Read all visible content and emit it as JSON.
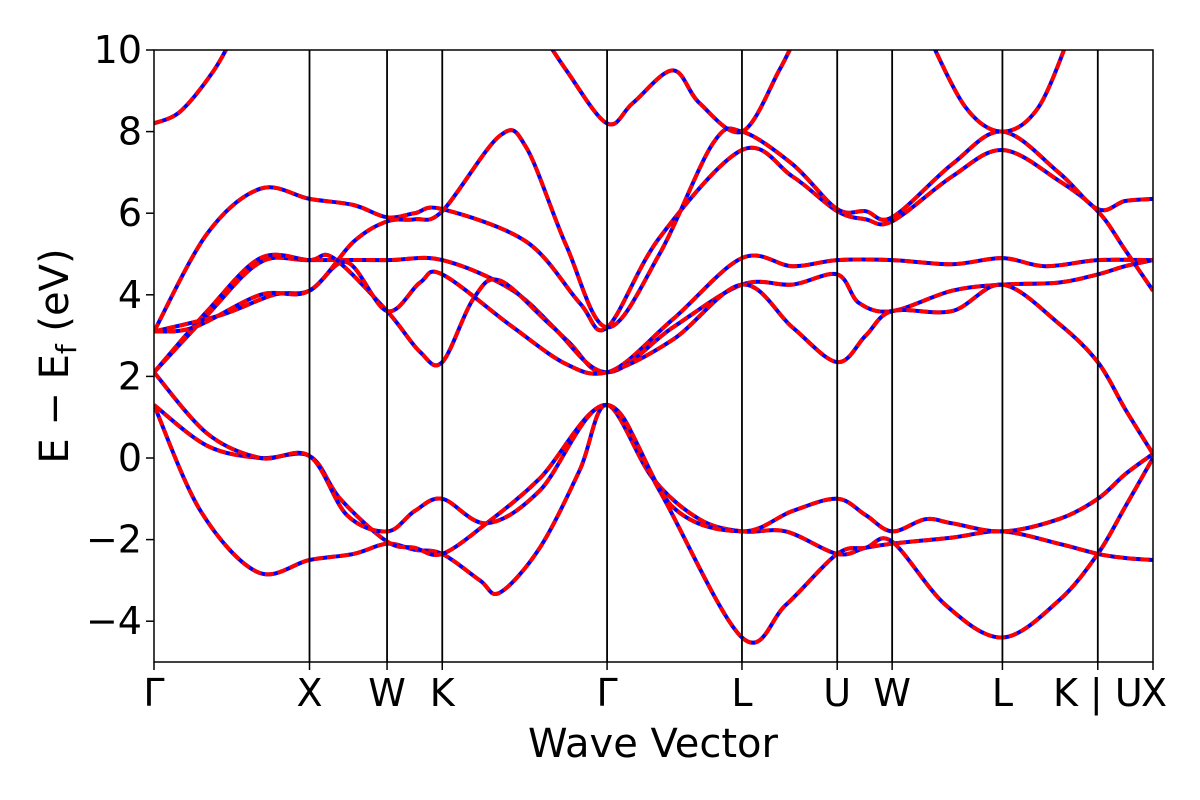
{
  "chart_data": {
    "type": "line",
    "title": "",
    "xlabel": "Wave Vector",
    "ylabel": "E − E",
    "ylabel_subscript": "f",
    "ylabel_unit": " (eV)",
    "ylim": [
      -5,
      10
    ],
    "yticks": [
      -4,
      -2,
      0,
      2,
      4,
      6,
      8,
      10
    ],
    "ytick_labels": [
      "−4",
      "−2",
      "0",
      "2",
      "4",
      "6",
      "8",
      "10"
    ],
    "xlim": [
      0,
      7.51
    ],
    "kpoints": [
      {
        "label": "Γ",
        "x": 0
      },
      {
        "label": "X",
        "x": 1.169
      },
      {
        "label": "W",
        "x": 1.752
      },
      {
        "label": "K",
        "x": 2.167
      },
      {
        "label": "Γ",
        "x": 3.406
      },
      {
        "label": "L",
        "x": 4.42
      },
      {
        "label": "U",
        "x": 5.136
      },
      {
        "label": "W",
        "x": 5.549
      },
      {
        "label": "L",
        "x": 6.378
      },
      {
        "label": "K | U",
        "x": 7.095
      },
      {
        "label": "X",
        "x": 7.51
      }
    ],
    "grid": false,
    "series_colors": {
      "overlay": "#ff0000",
      "base": "#0000ff"
    },
    "bands": [
      {
        "name": "",
        "points": [
          [
            0,
            1.3
          ],
          [
            0.35,
            -1.3
          ],
          [
            0.78,
            -2.8
          ],
          [
            1.169,
            -2.5
          ],
          [
            1.5,
            -2.35
          ],
          [
            1.752,
            -2.1
          ],
          [
            1.96,
            -2.25
          ],
          [
            2.167,
            -2.35
          ],
          [
            2.45,
            -3.0
          ],
          [
            2.6,
            -3.3
          ],
          [
            2.9,
            -2.2
          ],
          [
            3.2,
            -0.3
          ],
          [
            3.406,
            1.3
          ],
          [
            3.75,
            -0.5
          ],
          [
            4.1,
            -1.5
          ],
          [
            4.42,
            -1.8
          ],
          [
            4.75,
            -1.8
          ],
          [
            5.136,
            -2.35
          ],
          [
            5.35,
            -2.2
          ],
          [
            5.549,
            -2.1
          ],
          [
            6.0,
            -1.95
          ],
          [
            6.378,
            -1.8
          ],
          [
            6.8,
            -2.1
          ],
          [
            7.095,
            -2.35
          ],
          [
            7.3,
            -2.45
          ],
          [
            7.51,
            -2.5
          ]
        ]
      },
      {
        "name": "",
        "points": [
          [
            0,
            1.3
          ],
          [
            0.4,
            0.3
          ],
          [
            0.8,
            0.0
          ],
          [
            1.169,
            0.05
          ],
          [
            1.4,
            -1.0
          ],
          [
            1.752,
            -2.05
          ],
          [
            1.96,
            -2.2
          ],
          [
            2.167,
            -2.35
          ],
          [
            2.5,
            -1.6
          ],
          [
            2.9,
            -0.5
          ],
          [
            3.406,
            1.3
          ],
          [
            3.8,
            -0.8
          ],
          [
            4.42,
            -4.4
          ],
          [
            4.75,
            -3.6
          ],
          [
            5.136,
            -2.35
          ],
          [
            5.35,
            -2.2
          ],
          [
            5.549,
            -2.05
          ],
          [
            5.95,
            -3.6
          ],
          [
            6.378,
            -4.4
          ],
          [
            6.8,
            -3.5
          ],
          [
            7.095,
            -2.35
          ],
          [
            7.3,
            -1.2
          ],
          [
            7.51,
            0.0
          ]
        ]
      },
      {
        "name": "",
        "points": [
          [
            0,
            2.1
          ],
          [
            0.4,
            0.6
          ],
          [
            0.8,
            0.0
          ],
          [
            1.169,
            0.05
          ],
          [
            1.45,
            -1.4
          ],
          [
            1.752,
            -1.8
          ],
          [
            1.96,
            -1.3
          ],
          [
            2.167,
            -1.0
          ],
          [
            2.5,
            -1.6
          ],
          [
            2.9,
            -0.8
          ],
          [
            3.406,
            1.3
          ],
          [
            3.9,
            -1.2
          ],
          [
            4.42,
            -1.8
          ],
          [
            4.8,
            -1.3
          ],
          [
            5.136,
            -1.0
          ],
          [
            5.35,
            -1.4
          ],
          [
            5.549,
            -1.8
          ],
          [
            5.8,
            -1.5
          ],
          [
            6.0,
            -1.6
          ],
          [
            6.378,
            -1.8
          ],
          [
            6.8,
            -1.5
          ],
          [
            7.095,
            -1.0
          ],
          [
            7.3,
            -0.4
          ],
          [
            7.51,
            0.1
          ]
        ]
      },
      {
        "name": "",
        "points": [
          [
            0,
            2.1
          ],
          [
            0.4,
            3.5
          ],
          [
            0.8,
            4.8
          ],
          [
            1.169,
            4.85
          ],
          [
            1.752,
            4.85
          ],
          [
            2.167,
            4.85
          ],
          [
            2.7,
            4.1
          ],
          [
            3.1,
            2.9
          ],
          [
            3.406,
            2.1
          ],
          [
            3.9,
            3.4
          ],
          [
            4.42,
            4.9
          ],
          [
            4.8,
            4.7
          ],
          [
            5.136,
            4.85
          ],
          [
            5.549,
            4.85
          ],
          [
            6.0,
            4.75
          ],
          [
            6.378,
            4.9
          ],
          [
            6.7,
            4.7
          ],
          [
            7.095,
            4.85
          ],
          [
            7.51,
            4.85
          ]
        ]
      },
      {
        "name": "",
        "points": [
          [
            0,
            2.1
          ],
          [
            0.4,
            3.6
          ],
          [
            0.8,
            4.9
          ],
          [
            1.169,
            4.85
          ],
          [
            1.35,
            4.9
          ],
          [
            1.752,
            3.6
          ],
          [
            2.0,
            2.6
          ],
          [
            2.167,
            2.35
          ],
          [
            2.4,
            3.9
          ],
          [
            2.6,
            4.35
          ],
          [
            3.0,
            3.2
          ],
          [
            3.406,
            2.1
          ],
          [
            3.9,
            3.2
          ],
          [
            4.42,
            4.25
          ],
          [
            4.8,
            4.25
          ],
          [
            5.136,
            4.5
          ],
          [
            5.3,
            3.8
          ],
          [
            5.549,
            3.6
          ],
          [
            6.0,
            4.1
          ],
          [
            6.378,
            4.25
          ],
          [
            6.8,
            4.3
          ],
          [
            7.095,
            4.5
          ],
          [
            7.3,
            4.7
          ],
          [
            7.51,
            4.85
          ]
        ]
      },
      {
        "name": "",
        "points": [
          [
            0,
            3.1
          ],
          [
            0.5,
            3.5
          ],
          [
            0.9,
            4.0
          ],
          [
            1.169,
            4.1
          ],
          [
            1.45,
            4.8
          ],
          [
            1.752,
            3.6
          ],
          [
            2.0,
            4.3
          ],
          [
            2.167,
            4.5
          ],
          [
            2.7,
            3.2
          ],
          [
            3.1,
            2.3
          ],
          [
            3.406,
            2.1
          ],
          [
            3.9,
            2.9
          ],
          [
            4.42,
            4.25
          ],
          [
            4.8,
            3.2
          ],
          [
            5.136,
            2.35
          ],
          [
            5.35,
            3.0
          ],
          [
            5.549,
            3.6
          ],
          [
            6.0,
            3.6
          ],
          [
            6.378,
            4.25
          ],
          [
            6.8,
            3.3
          ],
          [
            7.095,
            2.35
          ],
          [
            7.3,
            1.2
          ],
          [
            7.51,
            0.1
          ]
        ]
      },
      {
        "name": "",
        "points": [
          [
            0,
            3.1
          ],
          [
            0.4,
            5.5
          ],
          [
            0.8,
            6.6
          ],
          [
            1.169,
            6.35
          ],
          [
            1.5,
            6.2
          ],
          [
            1.752,
            5.9
          ],
          [
            1.96,
            6.0
          ],
          [
            2.167,
            6.1
          ],
          [
            2.8,
            5.3
          ],
          [
            3.2,
            3.8
          ],
          [
            3.406,
            3.2
          ],
          [
            3.8,
            5.4
          ],
          [
            4.42,
            7.55
          ],
          [
            4.8,
            6.9
          ],
          [
            5.136,
            6.05
          ],
          [
            5.35,
            5.85
          ],
          [
            5.549,
            5.8
          ],
          [
            6.0,
            6.9
          ],
          [
            6.378,
            7.55
          ],
          [
            6.8,
            6.8
          ],
          [
            7.095,
            6.05
          ],
          [
            7.3,
            5.1
          ],
          [
            7.51,
            4.1
          ]
        ]
      },
      {
        "name": "",
        "points": [
          [
            0,
            3.1
          ],
          [
            0.3,
            3.2
          ],
          [
            0.8,
            4.0
          ],
          [
            1.169,
            4.1
          ],
          [
            1.5,
            5.3
          ],
          [
            1.752,
            5.8
          ],
          [
            1.96,
            5.85
          ],
          [
            2.167,
            6.05
          ],
          [
            2.6,
            7.9
          ],
          [
            2.8,
            7.6
          ],
          [
            3.1,
            5.2
          ],
          [
            3.406,
            3.2
          ],
          [
            3.8,
            5.0
          ],
          [
            4.2,
            7.7
          ],
          [
            4.42,
            8.0
          ],
          [
            4.8,
            7.2
          ],
          [
            5.136,
            6.1
          ],
          [
            5.35,
            6.05
          ],
          [
            5.549,
            5.9
          ],
          [
            6.0,
            7.2
          ],
          [
            6.378,
            8.0
          ],
          [
            6.8,
            7.0
          ],
          [
            7.095,
            6.1
          ],
          [
            7.3,
            6.3
          ],
          [
            7.51,
            6.35
          ]
        ]
      },
      {
        "name": "",
        "points": [
          [
            0,
            8.2
          ],
          [
            0.2,
            8.5
          ],
          [
            0.45,
            9.5
          ],
          [
            0.62,
            10.5
          ]
        ]
      },
      {
        "name": "",
        "points": [
          [
            2.9,
            10.5
          ],
          [
            3.1,
            9.5
          ],
          [
            3.406,
            8.2
          ],
          [
            3.6,
            8.7
          ],
          [
            3.9,
            9.5
          ],
          [
            4.1,
            8.7
          ],
          [
            4.42,
            8.0
          ],
          [
            4.7,
            9.5
          ],
          [
            4.85,
            10.5
          ]
        ]
      },
      {
        "name": "",
        "points": [
          [
            5.8,
            10.5
          ],
          [
            6.1,
            8.6
          ],
          [
            6.378,
            8.0
          ],
          [
            6.65,
            8.6
          ],
          [
            6.9,
            10.5
          ]
        ]
      }
    ]
  }
}
